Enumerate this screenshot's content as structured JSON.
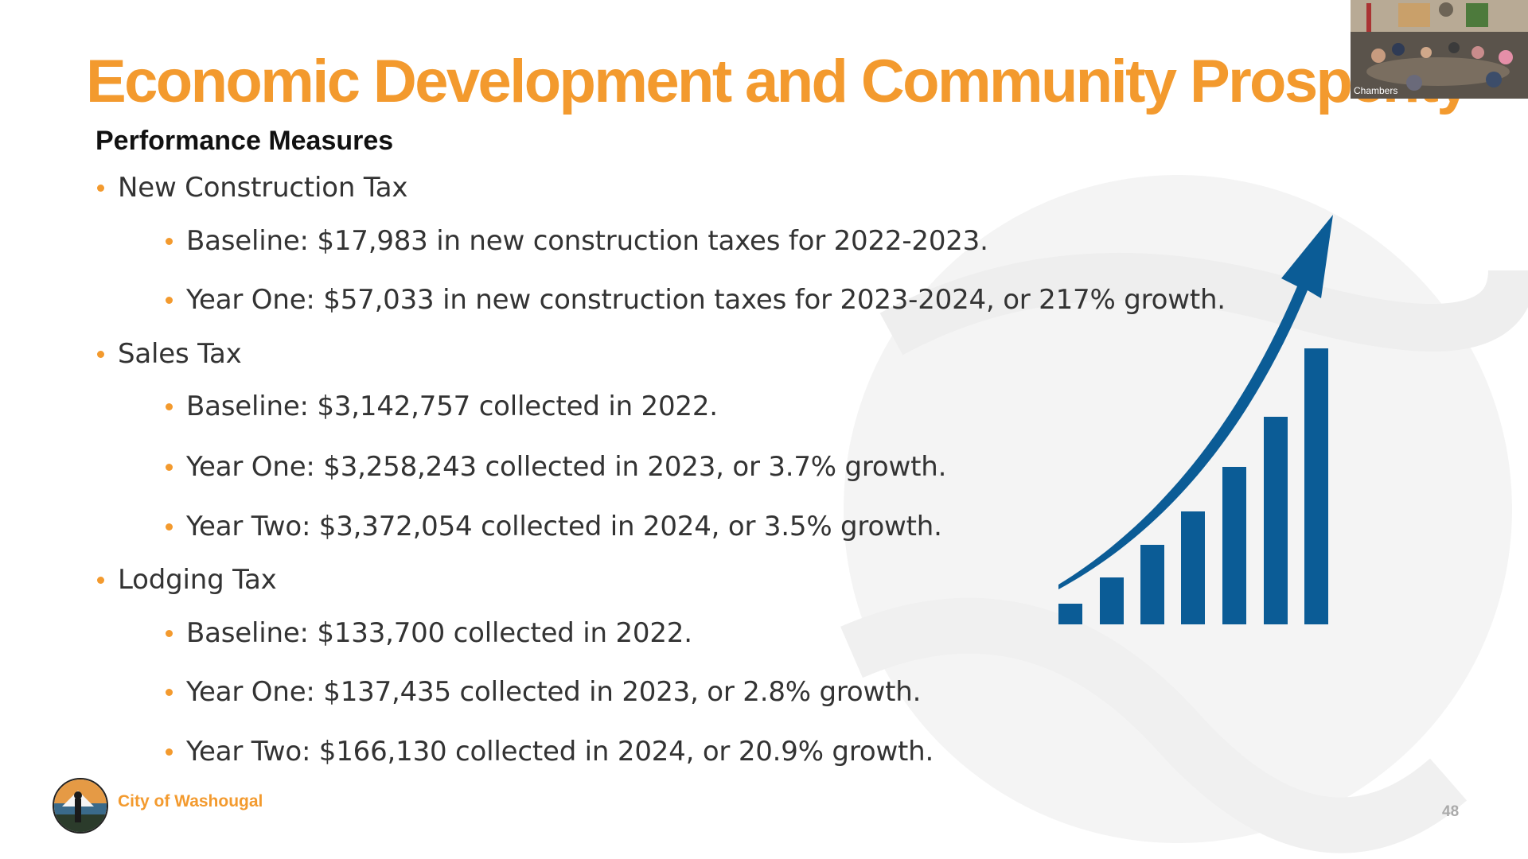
{
  "slide": {
    "title": "Economic Development and Community Prosperity",
    "subtitle": "Performance Measures",
    "sections": [
      {
        "heading": "New Construction Tax",
        "items": [
          "Baseline: $17,983 in new construction taxes for 2022-2023.",
          "Year One: $57,033 in new construction taxes for 2023-2024, or 217% growth."
        ]
      },
      {
        "heading": "Sales Tax",
        "items": [
          "Baseline: $3,142,757 collected in 2022.",
          "Year One: $3,258,243 collected in 2023, or 3.7% growth.",
          "Year Two: $3,372,054 collected in 2024, or 3.5% growth."
        ]
      },
      {
        "heading": "Lodging Tax",
        "items": [
          "Baseline: $133,700 collected in 2022.",
          "Year One: $137,435 collected in 2023, or 2.8% growth.",
          "Year Two: $166,130 collected in 2024, or 20.9% growth."
        ]
      }
    ],
    "footer": {
      "organization": "City of Washougal",
      "page_number": "48"
    }
  },
  "video_inset": {
    "label": "Chambers"
  },
  "colors": {
    "accent_orange": "#f39a2e",
    "chart_blue": "#0b5c96",
    "text_dark": "#333333"
  },
  "icons": {
    "growth_graphic": "growth-chart-arrow-icon",
    "logo": "city-seal-logo"
  }
}
